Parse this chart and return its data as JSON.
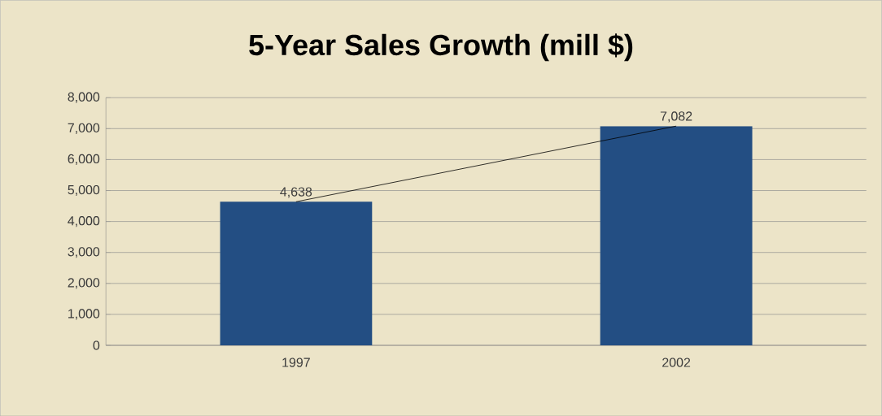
{
  "chart_data": {
    "type": "bar",
    "title": "5-Year Sales Growth (mill $)",
    "categories": [
      "1997",
      "2002"
    ],
    "series": [
      {
        "color": "#234e83",
        "values": [
          4638,
          7082
        ],
        "value_labels": [
          "4,638",
          "7,082"
        ]
      },
      {
        "type": "line",
        "color": "#000000",
        "values": [
          4638,
          7082
        ],
        "marker": "none",
        "line_style": "solid"
      }
    ],
    "ylim": [
      0,
      8000
    ],
    "yticks": [
      {
        "value": 0,
        "label": "0"
      },
      {
        "value": 1000,
        "label": "1,000"
      },
      {
        "value": 2000,
        "label": "2,000"
      },
      {
        "value": 3000,
        "label": "3,000"
      },
      {
        "value": 4000,
        "label": "4,000"
      },
      {
        "value": 5000,
        "label": "5,000"
      },
      {
        "value": 6000,
        "label": "6,000"
      },
      {
        "value": 7000,
        "label": "7,000"
      },
      {
        "value": 8000,
        "label": "8,000"
      }
    ],
    "grid": "y"
  }
}
